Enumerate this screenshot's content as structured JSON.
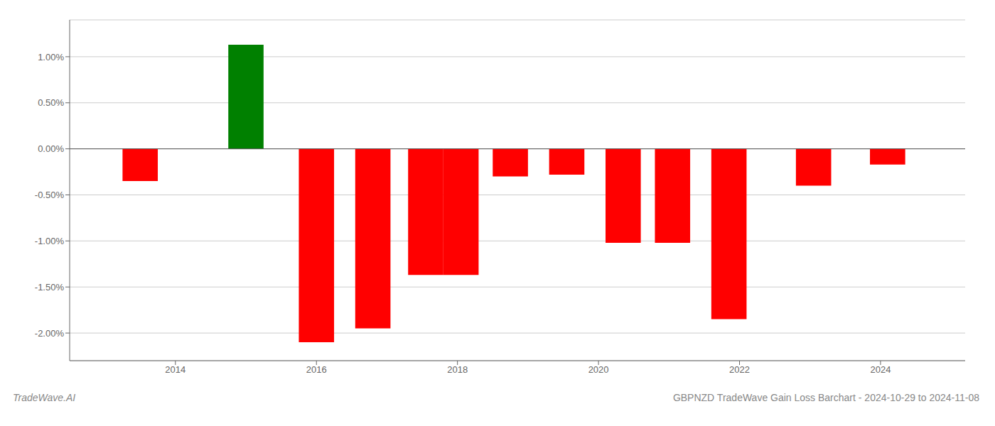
{
  "chart_data": {
    "type": "bar",
    "x": [
      2013.5,
      2015.0,
      2016.0,
      2016.8,
      2017.55,
      2018.05,
      2018.75,
      2019.55,
      2020.35,
      2021.05,
      2021.85,
      2023.05,
      2024.1
    ],
    "values": [
      -0.0035,
      0.0113,
      -0.021,
      -0.0195,
      -0.0137,
      -0.0137,
      -0.003,
      -0.0028,
      -0.0102,
      -0.0102,
      -0.0185,
      -0.004,
      -0.0017
    ],
    "colors": [
      "#ff0000",
      "#008000",
      "#ff0000",
      "#ff0000",
      "#ff0000",
      "#ff0000",
      "#ff0000",
      "#ff0000",
      "#ff0000",
      "#ff0000",
      "#ff0000",
      "#ff0000",
      "#ff0000"
    ],
    "xlim": [
      2012.5,
      2025.2
    ],
    "xticks": [
      2014,
      2016,
      2018,
      2020,
      2022,
      2024
    ],
    "ylim": [
      -0.023,
      0.014
    ],
    "yticks": [
      {
        "value": 0.01,
        "label": "1.00%"
      },
      {
        "value": 0.005,
        "label": "0.50%"
      },
      {
        "value": 0.0,
        "label": "0.00%"
      },
      {
        "value": -0.005,
        "label": "-0.50%"
      },
      {
        "value": -0.01,
        "label": "-1.00%"
      },
      {
        "value": -0.015,
        "label": "-1.50%"
      },
      {
        "value": -0.02,
        "label": "-2.00%"
      }
    ],
    "grid": true,
    "annotations": [
      "TradeWave.AI",
      "GBPNZD TradeWave Gain Loss Barchart - 2024-10-29 to 2024-11-08"
    ]
  }
}
